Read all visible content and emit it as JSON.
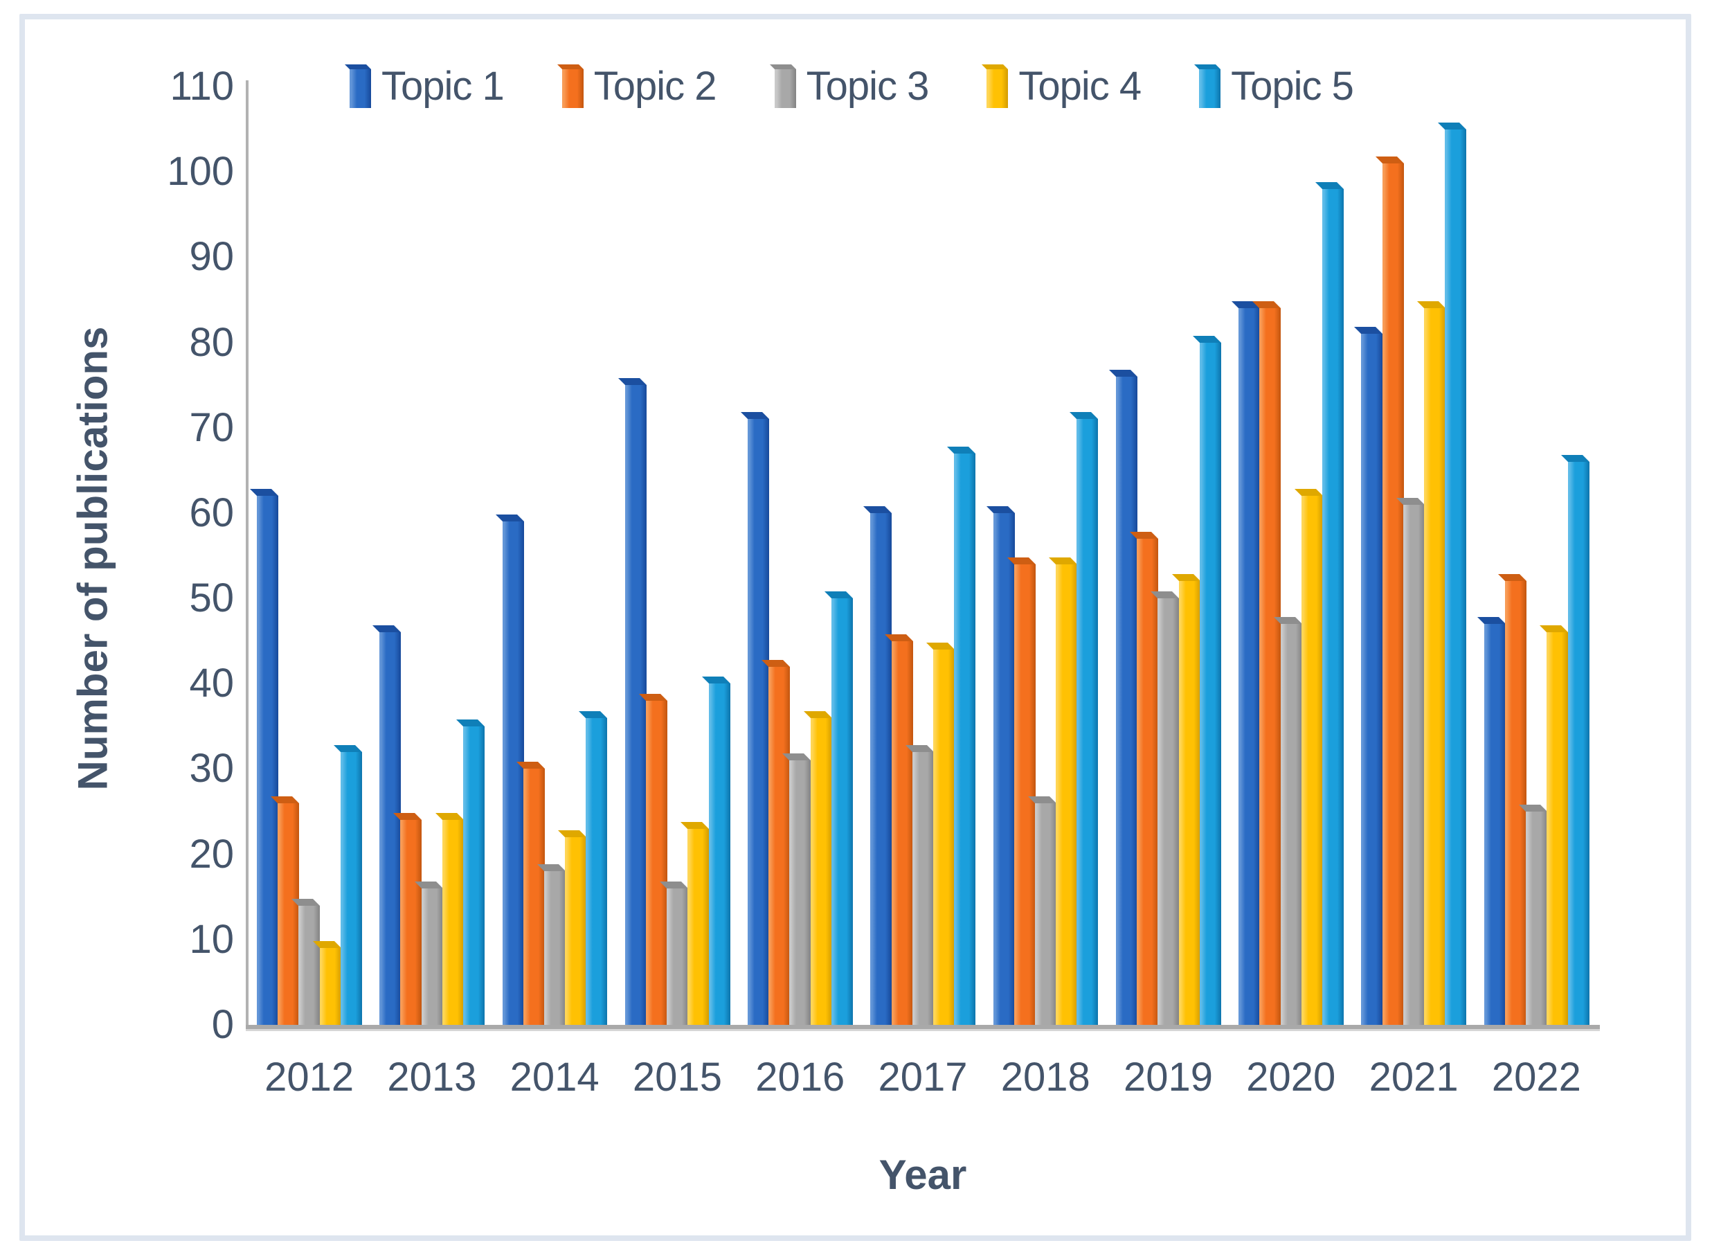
{
  "figure": {
    "background": "#ffffff",
    "border_color": "#dee5ef",
    "text_color": "#44546A",
    "axis_line_color": "#a9a9a9"
  },
  "chart_data": {
    "type": "bar",
    "title": "",
    "xlabel": "Year",
    "ylabel": "Number of publications",
    "categories": [
      "2012",
      "2013",
      "2014",
      "2015",
      "2016",
      "2017",
      "2018",
      "2019",
      "2020",
      "2021",
      "2022"
    ],
    "series": [
      {
        "name": "Topic 1",
        "color": "#2A6BC4",
        "light": "#6396D8",
        "dark": "#17499A",
        "cap": "#1B4FA0",
        "values": [
          62,
          46,
          59,
          75,
          71,
          60,
          60,
          76,
          84,
          81,
          47
        ]
      },
      {
        "name": "Topic 2",
        "color": "#F4701E",
        "light": "#F89C57",
        "dark": "#C2560F",
        "cap": "#CE5E13",
        "values": [
          26,
          24,
          30,
          38,
          42,
          45,
          54,
          57,
          84,
          101,
          52
        ]
      },
      {
        "name": "Topic 3",
        "color": "#A8A8A8",
        "light": "#C9C9C9",
        "dark": "#838383",
        "cap": "#8E8E8E",
        "values": [
          14,
          16,
          18,
          16,
          31,
          32,
          26,
          50,
          47,
          61,
          25
        ]
      },
      {
        "name": "Topic 4",
        "color": "#FFC103",
        "light": "#FFD657",
        "dark": "#D39C00",
        "cap": "#DFA800",
        "values": [
          9,
          24,
          22,
          23,
          36,
          44,
          54,
          52,
          62,
          84,
          46
        ]
      },
      {
        "name": "Topic 5",
        "color": "#1B9FDC",
        "light": "#5FBCE9",
        "dark": "#0D74AC",
        "cap": "#0F7FB8",
        "values": [
          32,
          35,
          36,
          40,
          50,
          67,
          71,
          80,
          98,
          105,
          66
        ]
      }
    ],
    "y_axis": {
      "min": 0,
      "max": 110,
      "step": 10
    },
    "grid": false,
    "legend_position": "top"
  }
}
